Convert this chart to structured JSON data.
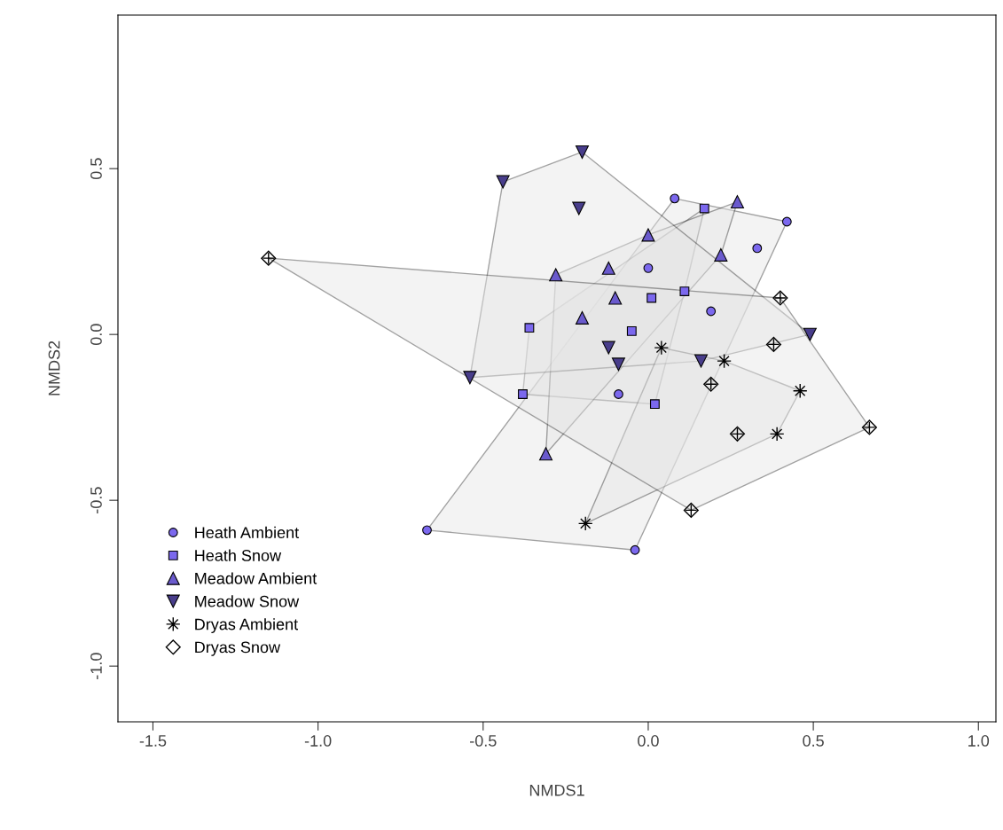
{
  "chart_data": {
    "type": "scatter",
    "xlabel": "NMDS1",
    "ylabel": "NMDS2",
    "xlim": [
      -1.606,
      1.053
    ],
    "ylim": [
      -1.168,
      0.963
    ],
    "xticks": [
      -1.5,
      {
        "value": -1,
        "label": "-1.0"
      },
      -0.5,
      {
        "value": 0,
        "label": "0.0"
      },
      0.5,
      {
        "value": 1,
        "label": "1.0"
      }
    ],
    "yticks": [
      {
        "value": -1,
        "label": "-1.0"
      },
      -0.5,
      {
        "value": 0,
        "label": "0.0"
      },
      0.5
    ],
    "grid": false,
    "legend": "bottom left",
    "series": [
      {
        "type": "area",
        "color": "#e6e6e6",
        "x": [
          0.08,
          0.42,
          -0.04,
          -0.67
        ],
        "values": [
          0.41,
          0.34,
          -0.65,
          -0.59
        ]
      },
      {
        "type": "area",
        "color": "#e6e6e6",
        "x": [
          0.17,
          0.11,
          0.02,
          -0.38,
          -0.36
        ],
        "values": [
          0.38,
          0.13,
          -0.21,
          -0.18,
          0.02
        ]
      },
      {
        "type": "area",
        "color": "#e6e6e6",
        "x": [
          0.27,
          0.22,
          -0.31,
          -0.28,
          0.0
        ],
        "values": [
          0.4,
          0.24,
          -0.36,
          0.18,
          0.3
        ]
      },
      {
        "type": "area",
        "color": "#e6e6e6",
        "x": [
          -0.2,
          0.49,
          0.16,
          -0.54,
          -0.44
        ],
        "values": [
          0.55,
          0.0,
          -0.08,
          -0.13,
          0.46
        ]
      },
      {
        "type": "area",
        "color": "#e6e6e6",
        "x": [
          0.04,
          0.23,
          0.46,
          0.39,
          -0.19
        ],
        "values": [
          -0.04,
          -0.08,
          -0.17,
          -0.3,
          -0.57
        ]
      },
      {
        "type": "area",
        "color": "#e6e6e6",
        "x": [
          -1.15,
          0.4,
          0.67,
          0.13
        ],
        "values": [
          0.23,
          0.11,
          -0.28,
          -0.53
        ]
      },
      {
        "name": "Heath Ambient",
        "color": "#7b68ee",
        "marker": "circle",
        "x": [
          0.08,
          0.42,
          0.33,
          0.0,
          0.19,
          -0.09,
          -0.67,
          -0.04
        ],
        "values": [
          0.41,
          0.34,
          0.26,
          0.2,
          0.07,
          -0.18,
          -0.59,
          -0.65
        ]
      },
      {
        "name": "Heath Snow",
        "color": "#7b68ee",
        "marker": "square",
        "x": [
          0.17,
          0.11,
          0.01,
          -0.36,
          -0.05,
          -0.38,
          0.02
        ],
        "values": [
          0.38,
          0.13,
          0.11,
          0.02,
          0.01,
          -0.18,
          -0.21
        ]
      },
      {
        "name": "Meadow Ambient",
        "color": "#6a5acd",
        "marker": "triangle",
        "x": [
          0.27,
          0.0,
          0.22,
          -0.28,
          -0.12,
          -0.1,
          -0.2,
          -0.31
        ],
        "values": [
          0.4,
          0.3,
          0.24,
          0.18,
          0.2,
          0.11,
          0.05,
          -0.36
        ]
      },
      {
        "name": "Meadow Snow",
        "color": "#483d8b",
        "marker": "triangle_down",
        "x": [
          -0.2,
          -0.44,
          -0.21,
          -0.12,
          -0.09,
          -0.54,
          0.16,
          0.49
        ],
        "values": [
          0.55,
          0.46,
          0.38,
          -0.04,
          -0.09,
          -0.13,
          -0.08,
          0.0
        ]
      },
      {
        "name": "Dryas Ambient",
        "color": "#000000",
        "marker": "star",
        "x": [
          0.04,
          0.23,
          0.46,
          0.39,
          -0.19
        ],
        "values": [
          -0.04,
          -0.08,
          -0.17,
          -0.3,
          -0.57
        ]
      },
      {
        "name": "Dryas Snow",
        "color": "#000000",
        "marker": "diamond",
        "x": [
          -1.15,
          0.4,
          0.38,
          0.19,
          0.27,
          0.67,
          0.13
        ],
        "values": [
          0.23,
          0.11,
          -0.03,
          -0.15,
          -0.3,
          -0.28,
          -0.53
        ]
      }
    ]
  }
}
